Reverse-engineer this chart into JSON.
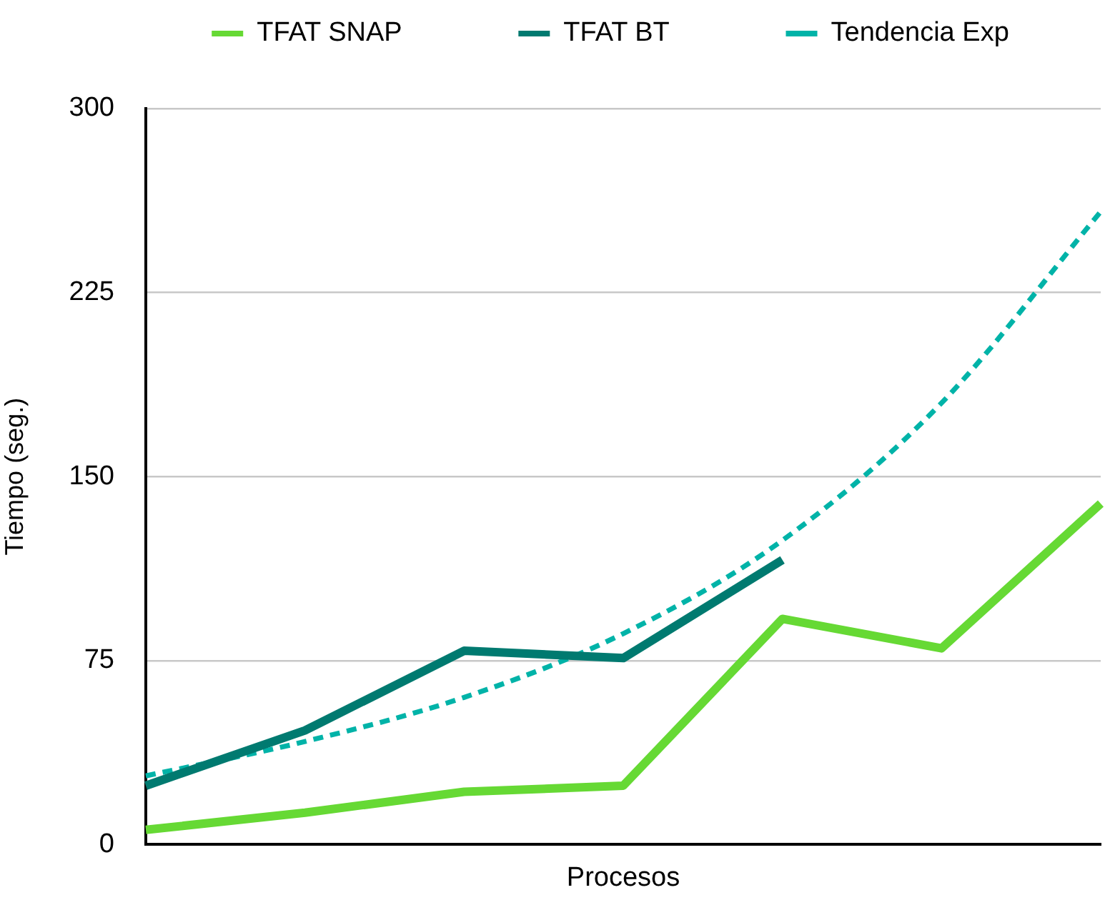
{
  "chart_data": {
    "type": "line",
    "xlabel": "Procesos",
    "ylabel": "Tiempo (seg.)",
    "categories": [
      null,
      null,
      null,
      null,
      null,
      null,
      null
    ],
    "series": [
      {
        "name": "TFAT SNAP",
        "color": "#66d934",
        "values": [
          6,
          13,
          21.5,
          24,
          92,
          80,
          139
        ]
      },
      {
        "name": "TFAT BT",
        "color": "#007a70",
        "values": [
          24,
          46.5,
          79,
          76,
          116,
          null,
          null
        ]
      },
      {
        "name": "Tendencia Exp",
        "color": "#00b3a8",
        "values": [
          28,
          42,
          60,
          86,
          124,
          180,
          258
        ],
        "line_style": "dashed"
      }
    ],
    "ylim": [
      0,
      300
    ],
    "yticks": [
      0,
      75,
      150,
      225,
      300
    ],
    "grid": "y",
    "legend": "top",
    "tick_labels": "y",
    "marker": "none"
  }
}
